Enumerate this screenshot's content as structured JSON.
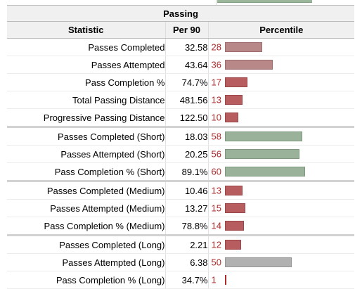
{
  "table": {
    "group_title": "Passing",
    "headers": {
      "statistic": "Statistic",
      "per90": "Per 90",
      "percentile": "Percentile"
    },
    "rows": [
      {
        "name": "Passes Completed",
        "per90": "32.58",
        "percentile": 28,
        "bar_color": "#b88888"
      },
      {
        "name": "Passes Attempted",
        "per90": "43.64",
        "percentile": 36,
        "bar_color": "#b88888"
      },
      {
        "name": "Pass Completion %",
        "per90": "74.7%",
        "percentile": 17,
        "bar_color": "#b75c5f"
      },
      {
        "name": "Total Passing Distance",
        "per90": "481.56",
        "percentile": 13,
        "bar_color": "#b75c5f"
      },
      {
        "name": "Progressive Passing Distance",
        "per90": "122.50",
        "percentile": 10,
        "bar_color": "#b75c5f"
      },
      {
        "name": "Passes Completed (Short)",
        "per90": "18.03",
        "percentile": 58,
        "bar_color": "#9ab19a"
      },
      {
        "name": "Passes Attempted (Short)",
        "per90": "20.25",
        "percentile": 56,
        "bar_color": "#9ab19a"
      },
      {
        "name": "Pass Completion % (Short)",
        "per90": "89.1%",
        "percentile": 60,
        "bar_color": "#9ab19a"
      },
      {
        "name": "Passes Completed (Medium)",
        "per90": "10.46",
        "percentile": 13,
        "bar_color": "#b75c5f"
      },
      {
        "name": "Passes Attempted (Medium)",
        "per90": "13.27",
        "percentile": 15,
        "bar_color": "#b75c5f"
      },
      {
        "name": "Pass Completion % (Medium)",
        "per90": "78.8%",
        "percentile": 14,
        "bar_color": "#b75c5f"
      },
      {
        "name": "Passes Completed (Long)",
        "per90": "2.21",
        "percentile": 12,
        "bar_color": "#b75c5f"
      },
      {
        "name": "Passes Attempted (Long)",
        "per90": "6.38",
        "percentile": 50,
        "bar_color": "#b1b1b1"
      },
      {
        "name": "Pass Completion % (Long)",
        "per90": "34.7%",
        "percentile": 1,
        "bar_color": "#b02a2a"
      }
    ]
  }
}
